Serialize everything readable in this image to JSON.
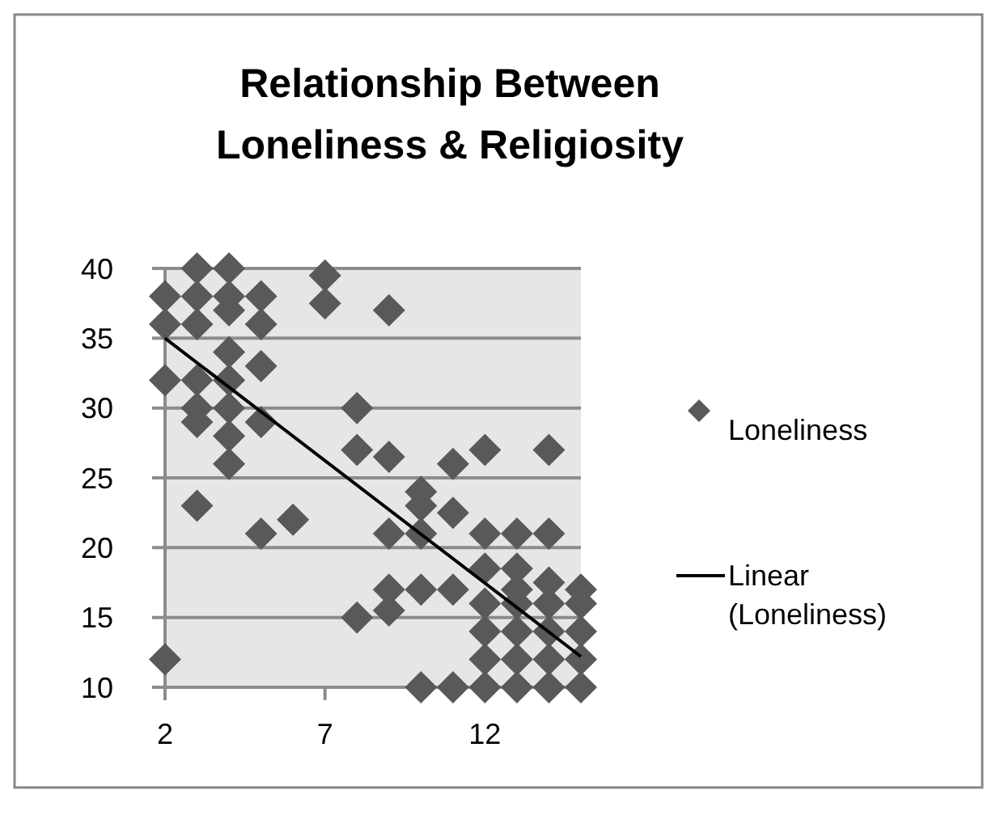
{
  "chart_data": {
    "type": "scatter",
    "title": "Relationship Between Loneliness & Religiosity",
    "xlim": [
      2,
      15
    ],
    "xticks": [
      2,
      7,
      12
    ],
    "ylim": [
      10,
      40
    ],
    "yticks": [
      10,
      15,
      20,
      25,
      30,
      35,
      40
    ],
    "grid": "y",
    "legend": "right",
    "marker": "diamond",
    "series": [
      {
        "name": "Loneliness",
        "color": "#595959",
        "x": [
          2,
          2,
          2,
          2,
          3,
          3,
          3,
          3,
          3,
          3,
          3,
          4,
          4,
          4,
          4,
          4,
          4,
          4,
          4,
          5,
          5,
          5,
          5,
          5,
          6,
          7,
          7,
          8,
          8,
          8,
          9,
          9,
          9,
          9,
          9,
          10,
          10,
          10,
          10,
          10,
          11,
          11,
          11,
          11,
          12,
          12,
          12,
          12,
          12,
          12,
          12,
          13,
          13,
          13,
          13,
          13,
          13,
          13,
          14,
          14,
          14,
          14,
          14,
          14,
          14,
          15,
          15,
          15,
          15,
          15
        ],
        "values": [
          38,
          36,
          32,
          12,
          40,
          38,
          36,
          32,
          30,
          29,
          23,
          40,
          38,
          37,
          34,
          32,
          30,
          28,
          26,
          38,
          36,
          33,
          29,
          21,
          22,
          39.5,
          37.5,
          30,
          27,
          15,
          37,
          26.5,
          21,
          17,
          15.5,
          24,
          23,
          21,
          17,
          10,
          26,
          22.5,
          17,
          10,
          27,
          21,
          18.5,
          16,
          14,
          12,
          10,
          21,
          18.5,
          17,
          16,
          14,
          12,
          10,
          27,
          21,
          17.5,
          16,
          14,
          12,
          10,
          17,
          16,
          14,
          12,
          10
        ]
      },
      {
        "name": "Linear (Loneliness)",
        "type": "line",
        "color": "#000000",
        "x": [
          2,
          15
        ],
        "values": [
          35,
          12.2
        ],
        "marker": "none"
      }
    ]
  }
}
